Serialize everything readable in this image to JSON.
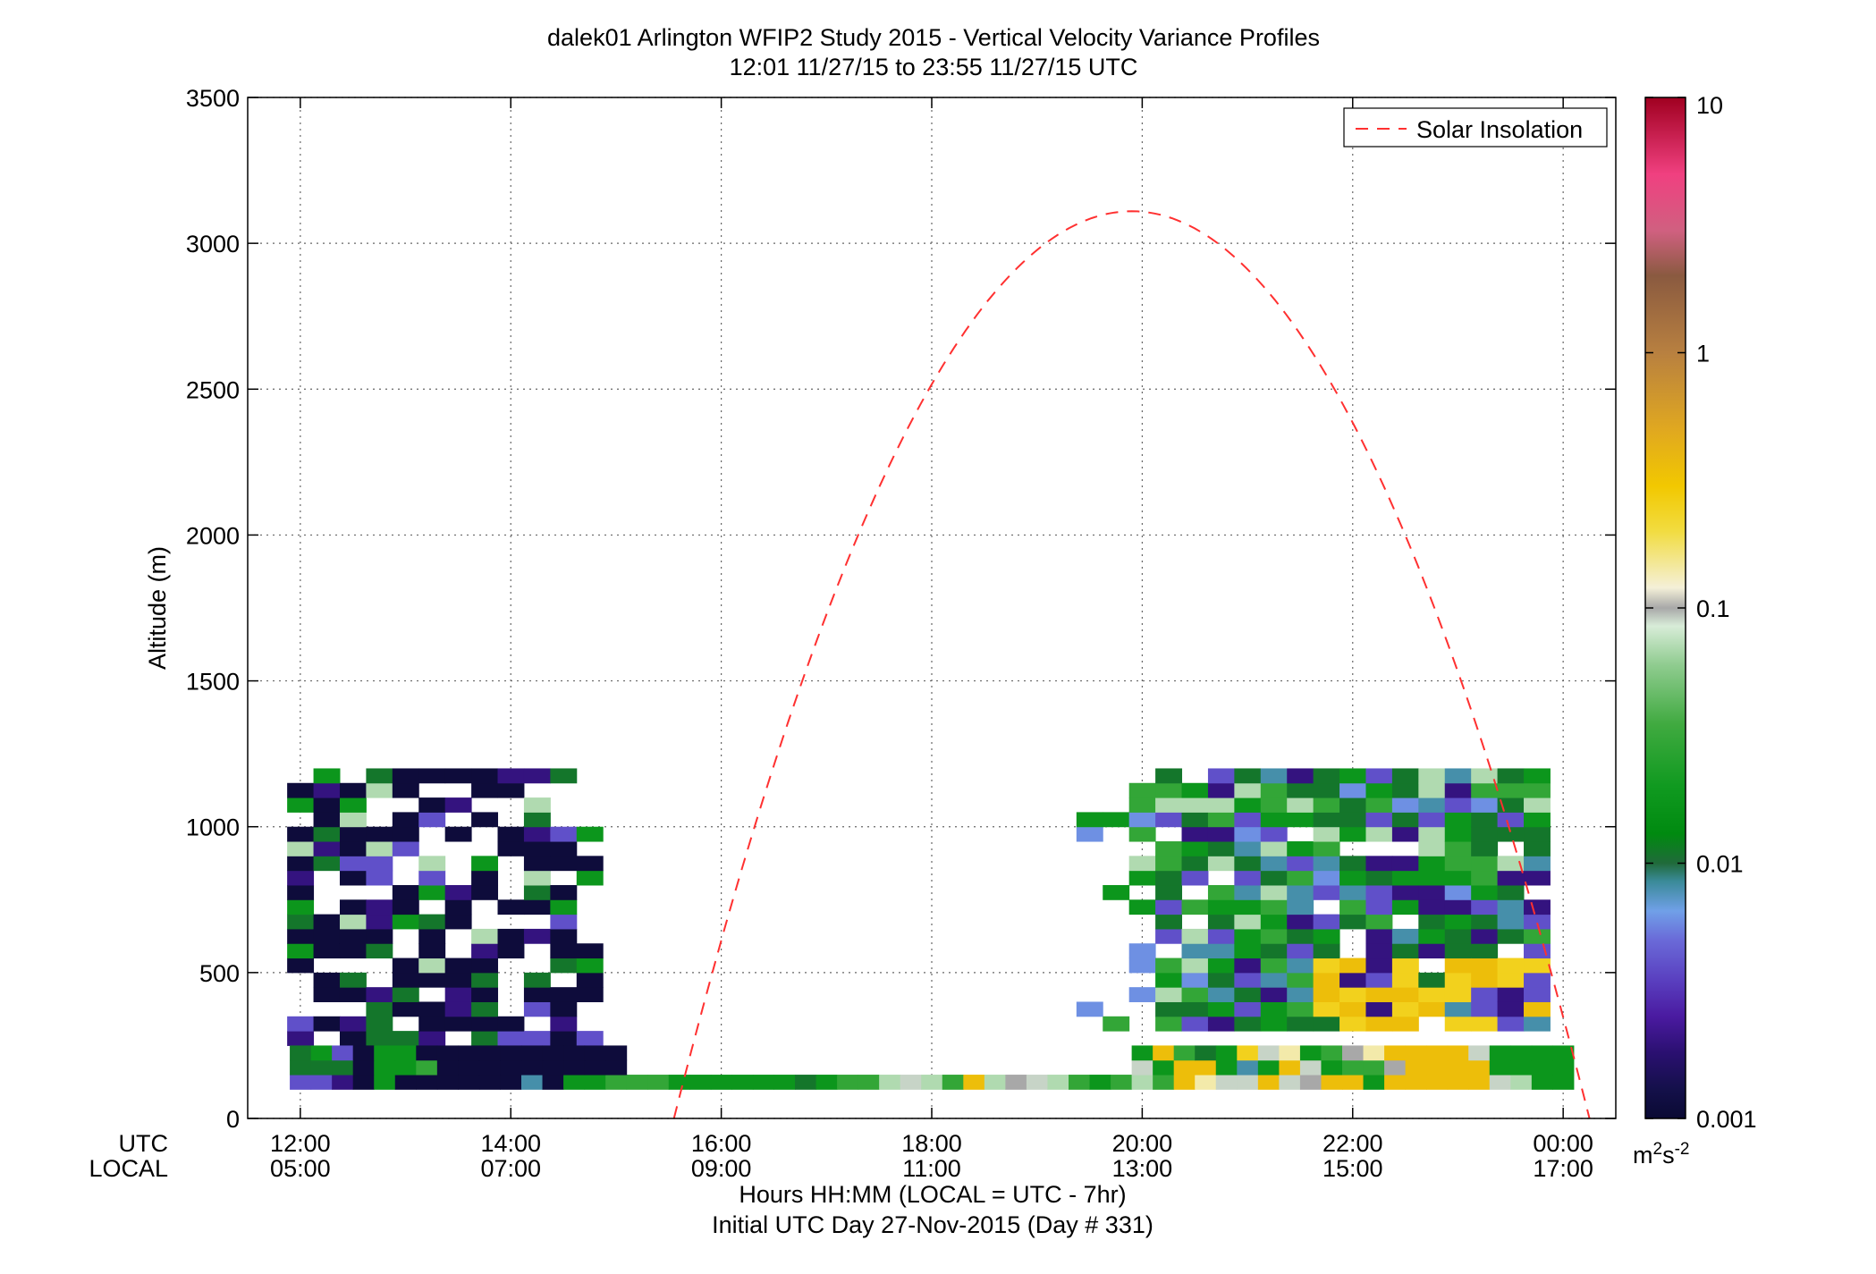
{
  "chart_data": {
    "type": "heatmap",
    "title": "dalek01 Arlington WFIP2 Study 2015 - Vertical Velocity Variance Profiles",
    "subtitle": "12:01 11/27/15 to 23:55 11/27/15  UTC",
    "ylabel": "Altitude (m)",
    "xlabel": "Hours HH:MM  (LOCAL = UTC - 7hr)",
    "xlabel2": "Initial UTC Day 27-Nov-2015 (Day # 331)",
    "x_row_label_utc": "UTC",
    "x_row_label_local": "LOCAL",
    "xlim_hours_utc": [
      11.5,
      24.5
    ],
    "ylim": [
      0,
      3500
    ],
    "grid": true,
    "x_ticks": [
      {
        "hour": 12,
        "utc": "12:00",
        "local": "05:00"
      },
      {
        "hour": 14,
        "utc": "14:00",
        "local": "07:00"
      },
      {
        "hour": 16,
        "utc": "16:00",
        "local": "09:00"
      },
      {
        "hour": 18,
        "utc": "18:00",
        "local": "11:00"
      },
      {
        "hour": 20,
        "utc": "20:00",
        "local": "13:00"
      },
      {
        "hour": 22,
        "utc": "22:00",
        "local": "15:00"
      },
      {
        "hour": 24,
        "utc": "00:00",
        "local": "17:00"
      }
    ],
    "y_ticks": [
      0,
      500,
      1000,
      1500,
      2000,
      2500,
      3000,
      3500
    ],
    "legend": {
      "position": "top-right",
      "entries": [
        {
          "name": "Solar Insolation",
          "color": "#ff3030",
          "style": "dashed"
        }
      ]
    },
    "solar_insolation": {
      "start_hour": 15.55,
      "end_hour": 24.25,
      "peak_hour": 19.9,
      "peak_altitude": 3110
    },
    "colorbar": {
      "scale": "log",
      "range": [
        0.001,
        10
      ],
      "tick_labels": [
        "10",
        "1",
        "0.1",
        "0.01",
        "0.001"
      ],
      "tick_values": [
        10,
        1,
        0.1,
        0.01,
        0.001
      ],
      "unit": "m2s-2",
      "unit_base": "m",
      "unit_sup1": "2",
      "unit_mid": "s",
      "unit_sup2": "-2",
      "gradient": [
        {
          "v": 0.001,
          "color": "#0a0a33"
        },
        {
          "v": 0.0013,
          "color": "#14104a"
        },
        {
          "v": 0.0018,
          "color": "#2a1070"
        },
        {
          "v": 0.0025,
          "color": "#4a1aa0"
        },
        {
          "v": 0.0035,
          "color": "#5a40c0"
        },
        {
          "v": 0.005,
          "color": "#6a6ad8"
        },
        {
          "v": 0.0065,
          "color": "#70a0e8"
        },
        {
          "v": 0.0085,
          "color": "#3a8a98"
        },
        {
          "v": 0.01,
          "color": "#206a3a"
        },
        {
          "v": 0.013,
          "color": "#008a10"
        },
        {
          "v": 0.02,
          "color": "#109a20"
        },
        {
          "v": 0.035,
          "color": "#40aa40"
        },
        {
          "v": 0.06,
          "color": "#90cc90"
        },
        {
          "v": 0.085,
          "color": "#d8ecd8"
        },
        {
          "v": 0.1,
          "color": "#a8a8a8"
        },
        {
          "v": 0.12,
          "color": "#f4f0d8"
        },
        {
          "v": 0.2,
          "color": "#f2dc40"
        },
        {
          "v": 0.3,
          "color": "#f2c800"
        },
        {
          "v": 0.5,
          "color": "#e0a820"
        },
        {
          "v": 1.0,
          "color": "#b88040"
        },
        {
          "v": 2.0,
          "color": "#8a5a40"
        },
        {
          "v": 3.0,
          "color": "#d06080"
        },
        {
          "v": 5.0,
          "color": "#f04080"
        },
        {
          "v": 10.0,
          "color": "#a00020"
        }
      ]
    },
    "heatmap": {
      "x_start_hour": 12.0,
      "x_step_hours": 0.25,
      "y_start_altitude": 100,
      "y_step_altitude": 50,
      "value_codes": {
        "A": 0.0011,
        "B": 0.002,
        "C": 0.004,
        "D": 0.006,
        "E": 0.008,
        "F": 0.011,
        "G": 0.018,
        "H": 0.03,
        "I": 0.07,
        "J": 0.09,
        "K": 0.1,
        "L": 0.14,
        "M": 0.25,
        "N": 0.35
      },
      "rows": [
        "CCBAHAHAAAHADEDHHHGGGGGGGGFGHHIJIHNIMKJIGGGHHNLGNGGGKNNGGNGNKNNNNHIGG",
        "FGCAGGHAAAGAAAHAAAAAAAAAAAAAGAAAAAAAANNHHFGNNLHJNNNNLJGNNNNJGG",
        "FGBAGFHGGGFHAAAAAAAAAAAAAAAAAAAAAAAAAGNHFFGMNLMLGHHLNNNNJMG",
        "FFBAAAAAAAAA",
        "FHAAAAAAAAAA"
      ],
      "cells": [
        [
          0,
          1,
          "C"
        ],
        [
          1,
          1,
          "C"
        ],
        [
          2,
          1,
          "B"
        ],
        [
          3,
          1,
          "A"
        ],
        [
          4,
          1,
          "G"
        ],
        [
          5,
          1,
          "A"
        ],
        [
          6,
          1,
          "A"
        ],
        [
          7,
          1,
          "A"
        ],
        [
          8,
          1,
          "A"
        ],
        [
          9,
          1,
          "A"
        ],
        [
          10,
          1,
          "A"
        ],
        [
          11,
          1,
          "E"
        ],
        [
          12,
          1,
          "A"
        ],
        [
          13,
          1,
          "G"
        ],
        [
          14,
          1,
          "G"
        ],
        [
          15,
          1,
          "H"
        ],
        [
          16,
          1,
          "H"
        ],
        [
          17,
          1,
          "H"
        ],
        [
          18,
          1,
          "G"
        ],
        [
          19,
          1,
          "G"
        ],
        [
          20,
          1,
          "G"
        ],
        [
          21,
          1,
          "G"
        ],
        [
          22,
          1,
          "G"
        ],
        [
          23,
          1,
          "G"
        ],
        [
          24,
          1,
          "F"
        ],
        [
          25,
          1,
          "G"
        ],
        [
          26,
          1,
          "H"
        ],
        [
          27,
          1,
          "H"
        ],
        [
          28,
          1,
          "I"
        ],
        [
          29,
          1,
          "J"
        ],
        [
          30,
          1,
          "I"
        ],
        [
          31,
          1,
          "H"
        ],
        [
          32,
          1,
          "N"
        ],
        [
          33,
          1,
          "I"
        ],
        [
          34,
          1,
          "K"
        ],
        [
          35,
          1,
          "J"
        ],
        [
          36,
          1,
          "I"
        ],
        [
          37,
          1,
          "H"
        ],
        [
          38,
          1,
          "G"
        ],
        [
          39,
          1,
          "H"
        ],
        [
          40,
          1,
          "I"
        ],
        [
          41,
          1,
          "H"
        ],
        [
          42,
          1,
          "N"
        ],
        [
          43,
          1,
          "L"
        ],
        [
          44,
          1,
          "J"
        ],
        [
          45,
          1,
          "J"
        ],
        [
          46,
          1,
          "N"
        ],
        [
          47,
          1,
          "J"
        ],
        [
          48,
          1,
          "K"
        ],
        [
          49,
          1,
          "N"
        ],
        [
          50,
          1,
          "N"
        ],
        [
          51,
          1,
          "G"
        ],
        [
          52,
          1,
          "N"
        ],
        [
          53,
          1,
          "N"
        ],
        [
          54,
          1,
          "N"
        ],
        [
          55,
          1,
          "N"
        ],
        [
          56,
          1,
          "N"
        ],
        [
          57,
          1,
          "J"
        ],
        [
          58,
          1,
          "I"
        ],
        [
          59,
          1,
          "G"
        ],
        [
          60,
          1,
          "G"
        ],
        [
          0,
          2,
          "F"
        ],
        [
          1,
          2,
          "F"
        ],
        [
          2,
          2,
          "F"
        ],
        [
          3,
          2,
          "A"
        ],
        [
          4,
          2,
          "G"
        ],
        [
          5,
          2,
          "G"
        ],
        [
          6,
          2,
          "H"
        ],
        [
          7,
          2,
          "A"
        ],
        [
          8,
          2,
          "A"
        ],
        [
          9,
          2,
          "A"
        ],
        [
          10,
          2,
          "A"
        ],
        [
          11,
          2,
          "A"
        ],
        [
          12,
          2,
          "A"
        ],
        [
          13,
          2,
          "A"
        ],
        [
          14,
          2,
          "A"
        ],
        [
          15,
          2,
          "A"
        ],
        [
          40,
          2,
          "J"
        ],
        [
          41,
          2,
          "G"
        ],
        [
          42,
          2,
          "N"
        ],
        [
          43,
          2,
          "N"
        ],
        [
          44,
          2,
          "G"
        ],
        [
          45,
          2,
          "E"
        ],
        [
          46,
          2,
          "G"
        ],
        [
          47,
          2,
          "N"
        ],
        [
          48,
          2,
          "J"
        ],
        [
          49,
          2,
          "G"
        ],
        [
          50,
          2,
          "H"
        ],
        [
          51,
          2,
          "H"
        ],
        [
          52,
          2,
          "K"
        ],
        [
          53,
          2,
          "N"
        ],
        [
          54,
          2,
          "N"
        ],
        [
          55,
          2,
          "N"
        ],
        [
          56,
          2,
          "N"
        ],
        [
          57,
          2,
          "G"
        ],
        [
          58,
          2,
          "G"
        ],
        [
          59,
          2,
          "G"
        ],
        [
          60,
          2,
          "G"
        ],
        [
          0,
          3,
          "F"
        ],
        [
          1,
          3,
          "G"
        ],
        [
          2,
          3,
          "C"
        ],
        [
          3,
          3,
          "A"
        ],
        [
          4,
          3,
          "G"
        ],
        [
          5,
          3,
          "G"
        ],
        [
          6,
          3,
          "A"
        ],
        [
          7,
          3,
          "A"
        ],
        [
          8,
          3,
          "A"
        ],
        [
          9,
          3,
          "A"
        ],
        [
          10,
          3,
          "A"
        ],
        [
          11,
          3,
          "A"
        ],
        [
          12,
          3,
          "A"
        ],
        [
          13,
          3,
          "A"
        ],
        [
          14,
          3,
          "A"
        ],
        [
          15,
          3,
          "A"
        ],
        [
          40,
          3,
          "G"
        ],
        [
          41,
          3,
          "N"
        ],
        [
          42,
          3,
          "H"
        ],
        [
          43,
          3,
          "F"
        ],
        [
          44,
          3,
          "G"
        ],
        [
          45,
          3,
          "M"
        ],
        [
          46,
          3,
          "J"
        ],
        [
          47,
          3,
          "L"
        ],
        [
          48,
          3,
          "G"
        ],
        [
          49,
          3,
          "H"
        ],
        [
          50,
          3,
          "K"
        ],
        [
          51,
          3,
          "L"
        ],
        [
          52,
          3,
          "N"
        ],
        [
          53,
          3,
          "N"
        ],
        [
          54,
          3,
          "N"
        ],
        [
          55,
          3,
          "N"
        ],
        [
          56,
          3,
          "J"
        ],
        [
          57,
          3,
          "G"
        ],
        [
          58,
          3,
          "G"
        ],
        [
          59,
          3,
          "G"
        ],
        [
          60,
          3,
          "G"
        ]
      ]
    }
  }
}
